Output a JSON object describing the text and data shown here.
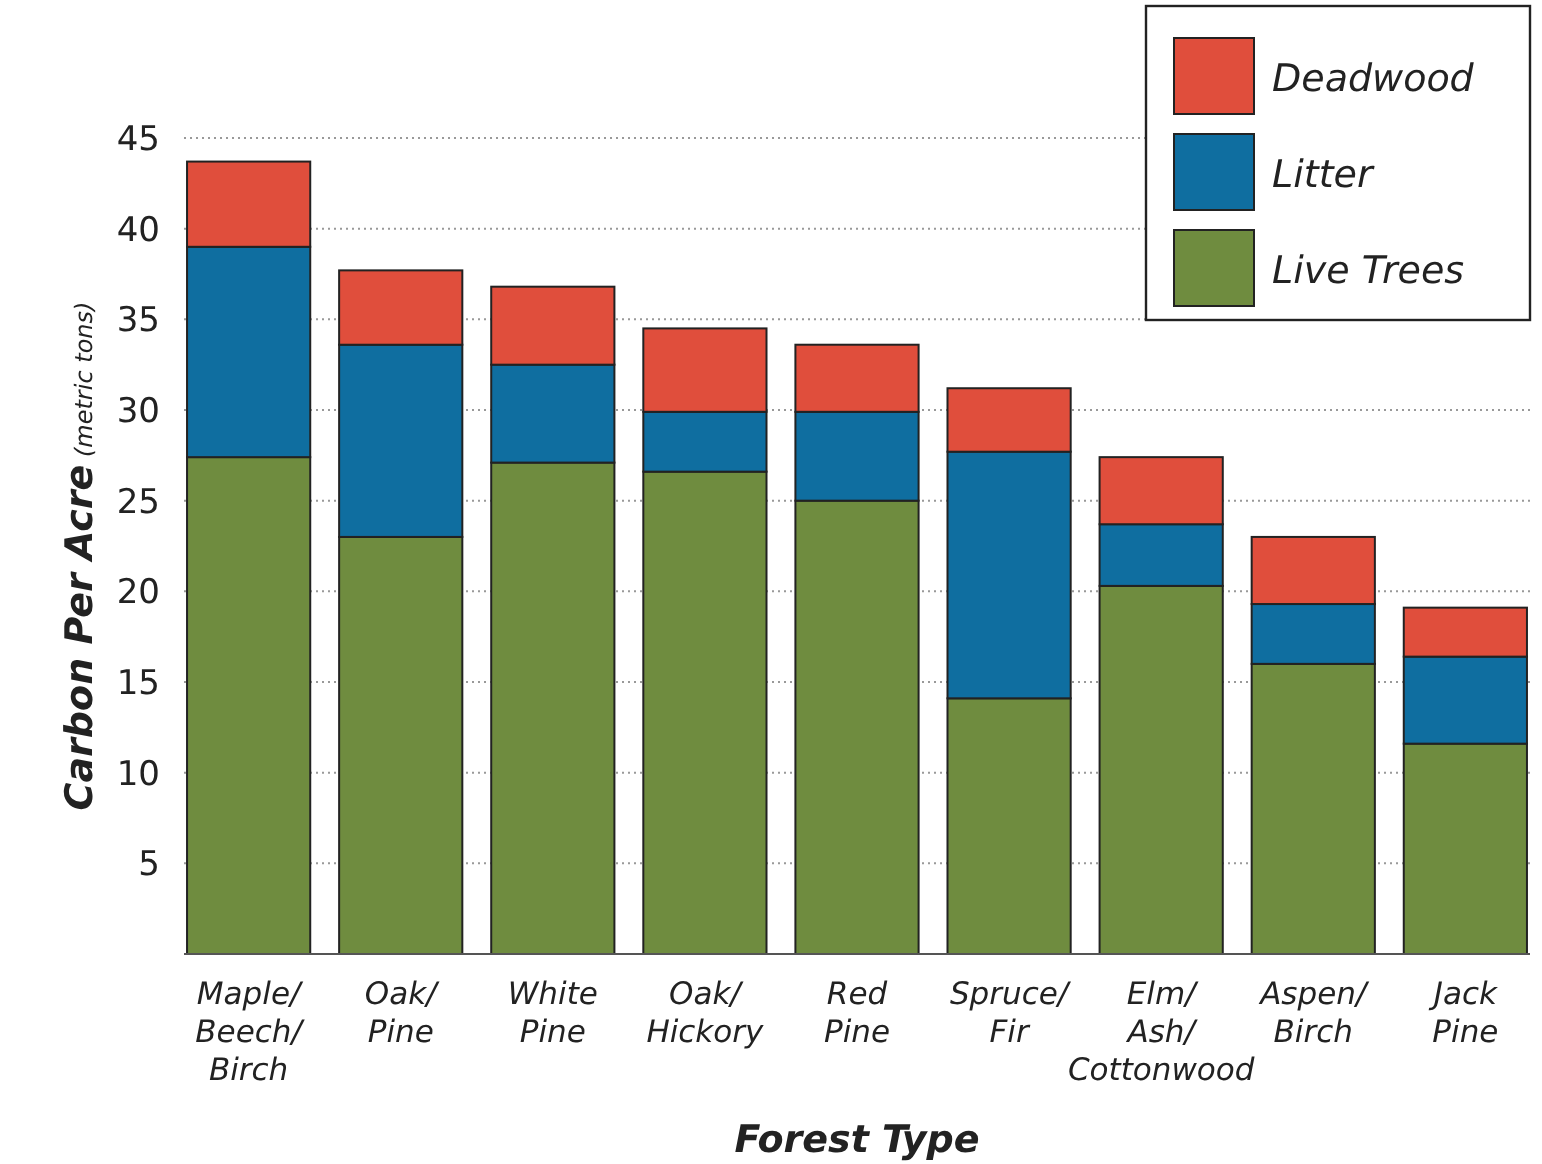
{
  "chart_data": {
    "type": "bar",
    "stacked": true,
    "xlabel": "Forest Type",
    "ylabel": "Carbon Per Acre (metric tons)",
    "categories": [
      "Maple/\nBeech/\nBirch",
      "Oak/\nPine",
      "White\nPine",
      "Oak/\nHickory",
      "Red\nPine",
      "Spruce/\nFir",
      "Elm/\nAsh/\nCottonwood",
      "Aspen/\nBirch",
      "Jack\nPine"
    ],
    "series": [
      {
        "name": "Live Trees",
        "color": "#6f8c3f",
        "values": [
          27.4,
          23.0,
          27.1,
          26.6,
          25.0,
          14.1,
          20.3,
          16.0,
          11.6
        ]
      },
      {
        "name": "Litter",
        "color": "#0f6ea0",
        "values": [
          11.6,
          10.6,
          5.4,
          3.3,
          4.9,
          13.6,
          3.4,
          3.3,
          4.8
        ]
      },
      {
        "name": "Deadwood",
        "color": "#e04e3c",
        "values": [
          4.7,
          4.1,
          4.3,
          4.6,
          3.7,
          3.5,
          3.7,
          3.7,
          2.7
        ]
      }
    ],
    "ylim": [
      0,
      45
    ],
    "yticks": [
      5,
      10,
      15,
      20,
      25,
      30,
      35,
      40,
      45
    ],
    "grid": "y",
    "legend": "top right"
  }
}
